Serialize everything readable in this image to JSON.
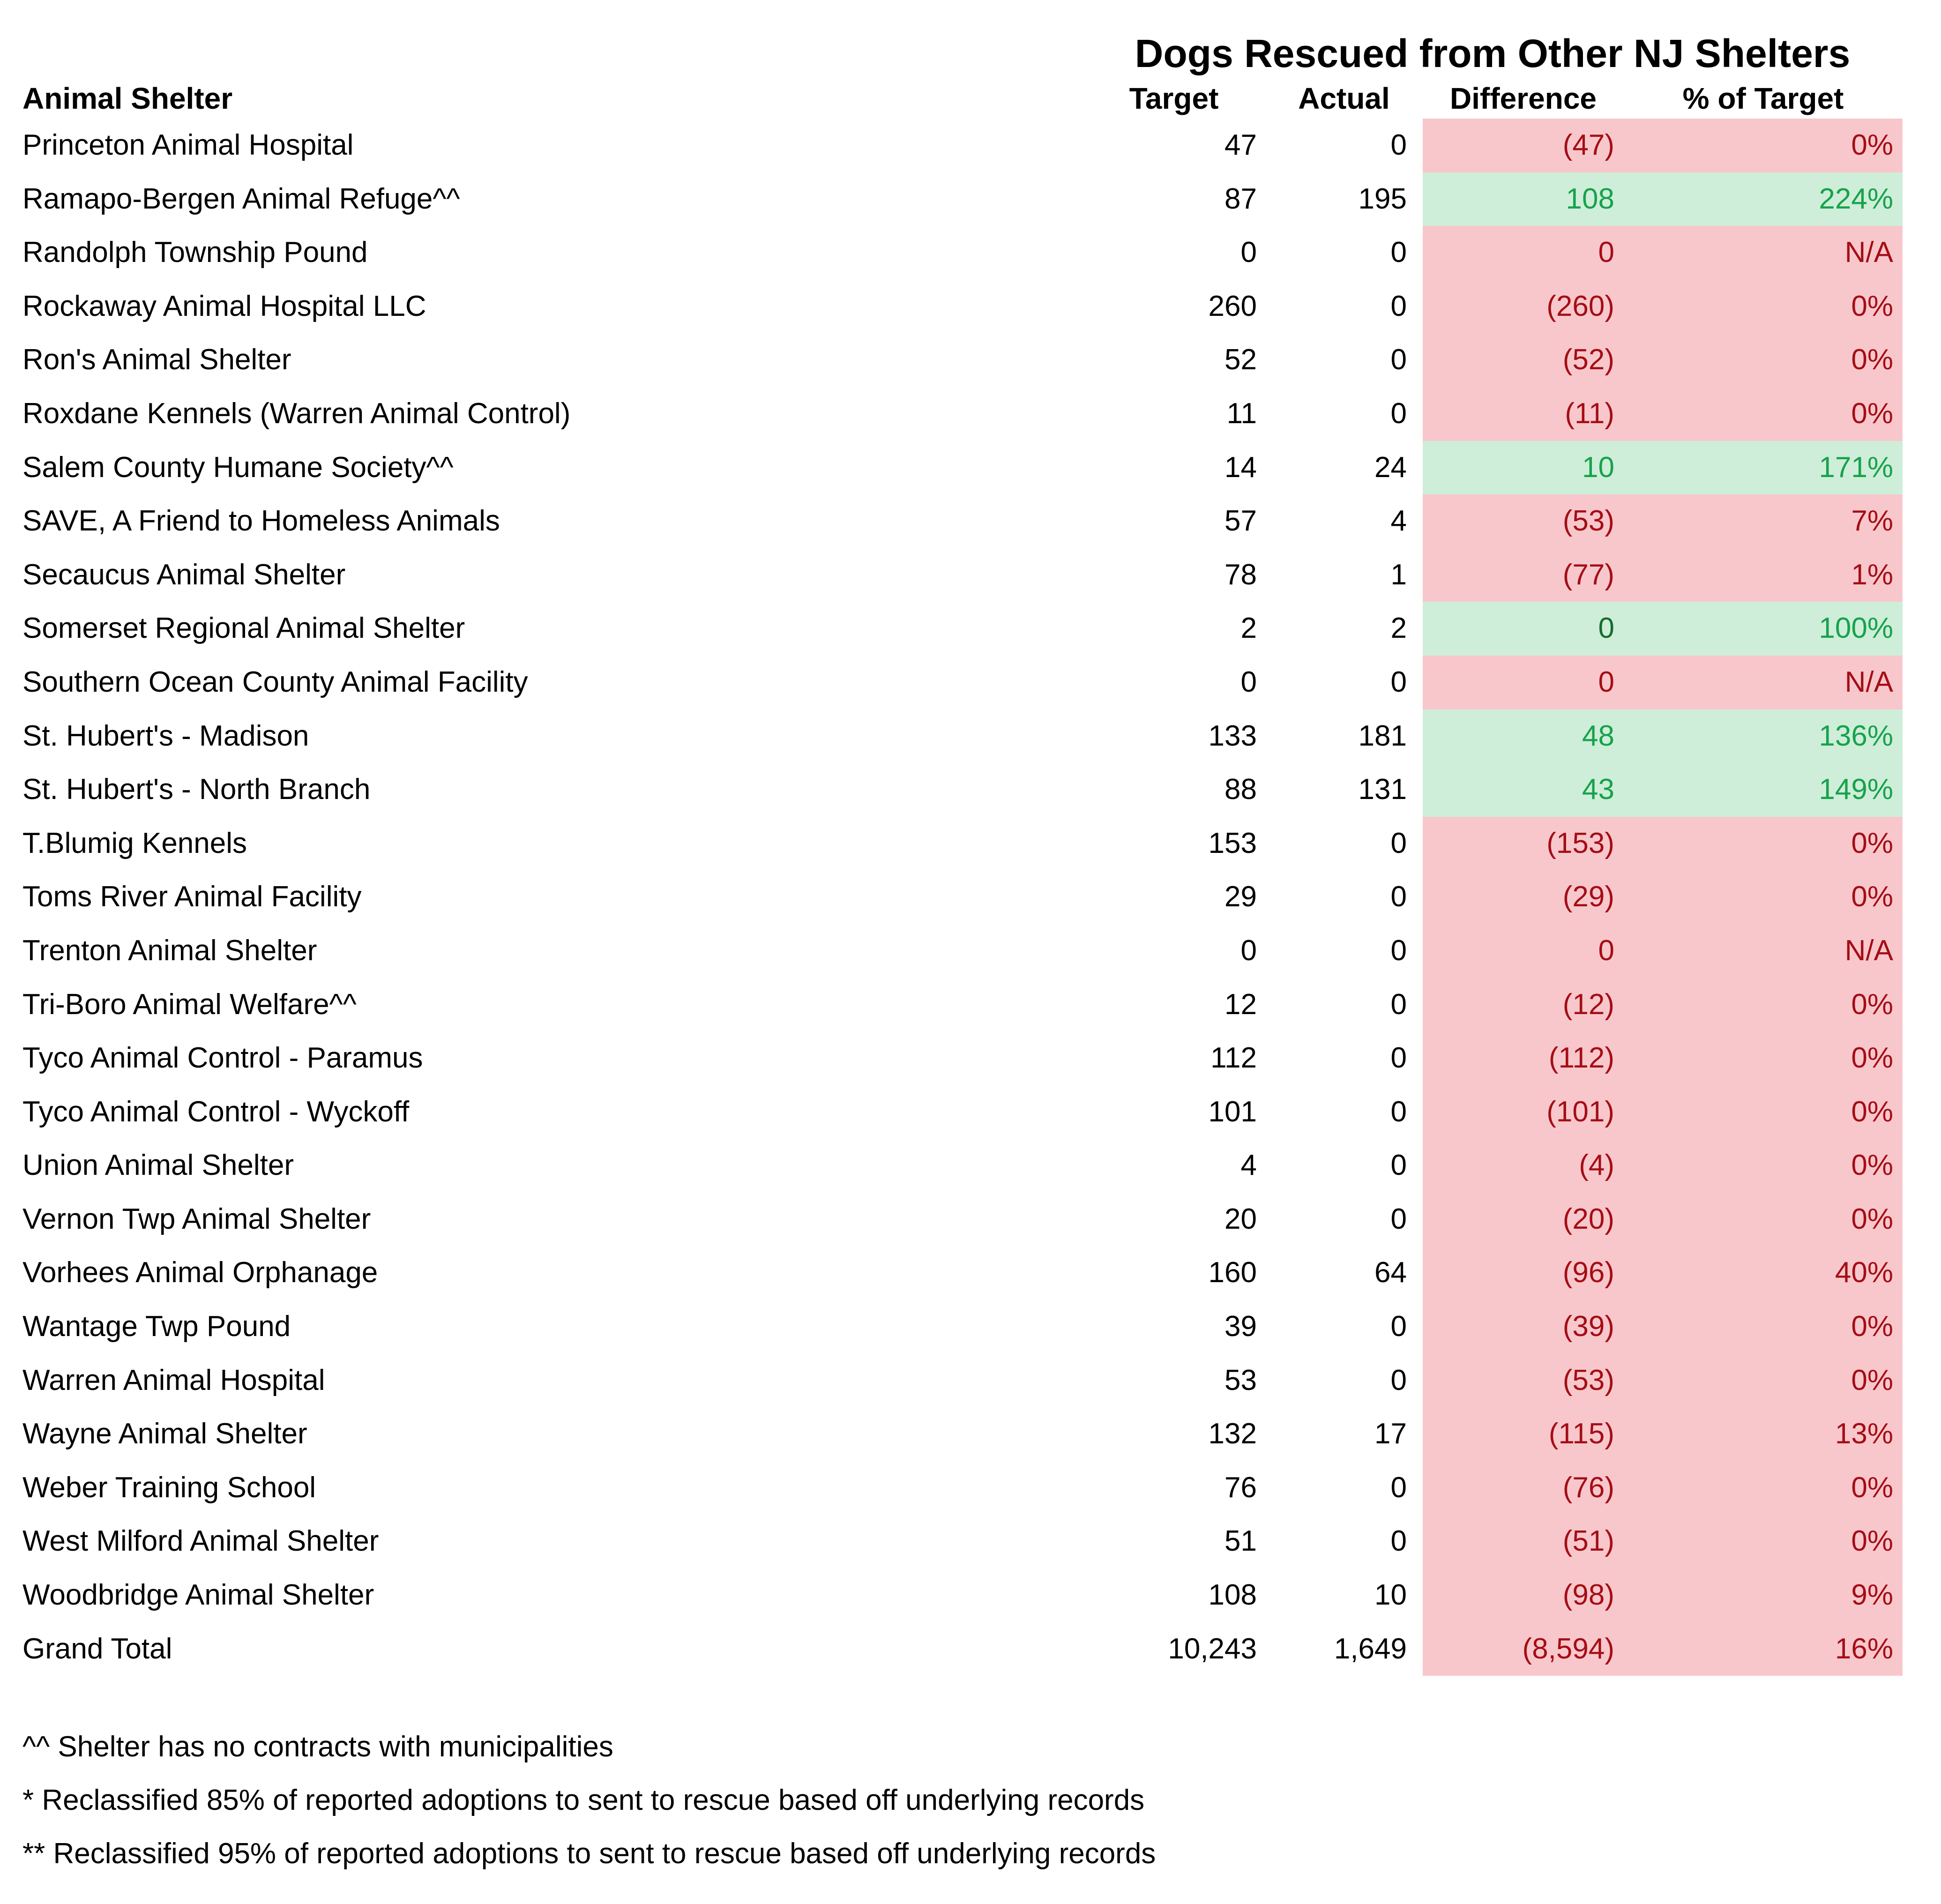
{
  "title": "Dogs Rescued from Other NJ Shelters",
  "columns": {
    "shelter": "Animal Shelter",
    "target": "Target",
    "actual": "Actual",
    "difference": "Difference",
    "pct": "% of Target"
  },
  "rows": [
    {
      "shelter": "Princeton Animal Hospital",
      "target": "47",
      "actual": "0",
      "difference": "(47)",
      "pct": "0%",
      "status": "bad"
    },
    {
      "shelter": "Ramapo-Bergen Animal Refuge^^",
      "target": "87",
      "actual": "195",
      "difference": "108",
      "pct": "224%",
      "status": "good"
    },
    {
      "shelter": "Randolph Township Pound",
      "target": "0",
      "actual": "0",
      "difference": "0",
      "pct": "N/A",
      "status": "bad"
    },
    {
      "shelter": "Rockaway Animal Hospital LLC",
      "target": "260",
      "actual": "0",
      "difference": "(260)",
      "pct": "0%",
      "status": "bad"
    },
    {
      "shelter": "Ron's Animal Shelter",
      "target": "52",
      "actual": "0",
      "difference": "(52)",
      "pct": "0%",
      "status": "bad"
    },
    {
      "shelter": "Roxdane Kennels (Warren Animal Control)",
      "target": "11",
      "actual": "0",
      "difference": "(11)",
      "pct": "0%",
      "status": "bad"
    },
    {
      "shelter": "Salem County Humane Society^^",
      "target": "14",
      "actual": "24",
      "difference": "10",
      "pct": "171%",
      "status": "good"
    },
    {
      "shelter": "SAVE, A Friend to Homeless Animals",
      "target": "57",
      "actual": "4",
      "difference": "(53)",
      "pct": "7%",
      "status": "bad"
    },
    {
      "shelter": "Secaucus Animal Shelter",
      "target": "78",
      "actual": "1",
      "difference": "(77)",
      "pct": "1%",
      "status": "bad"
    },
    {
      "shelter": "Somerset Regional Animal Shelter",
      "target": "2",
      "actual": "2",
      "difference": "0",
      "pct": "100%",
      "status": "good",
      "diff_tone": "dark"
    },
    {
      "shelter": "Southern Ocean County Animal Facility",
      "target": "0",
      "actual": "0",
      "difference": "0",
      "pct": "N/A",
      "status": "bad"
    },
    {
      "shelter": "St. Hubert's - Madison",
      "target": "133",
      "actual": "181",
      "difference": "48",
      "pct": "136%",
      "status": "good"
    },
    {
      "shelter": "St. Hubert's - North Branch",
      "target": "88",
      "actual": "131",
      "difference": "43",
      "pct": "149%",
      "status": "good"
    },
    {
      "shelter": "T.Blumig Kennels",
      "target": "153",
      "actual": "0",
      "difference": "(153)",
      "pct": "0%",
      "status": "bad"
    },
    {
      "shelter": "Toms River Animal Facility",
      "target": "29",
      "actual": "0",
      "difference": "(29)",
      "pct": "0%",
      "status": "bad"
    },
    {
      "shelter": "Trenton Animal Shelter",
      "target": "0",
      "actual": "0",
      "difference": "0",
      "pct": "N/A",
      "status": "bad"
    },
    {
      "shelter": "Tri-Boro Animal Welfare^^",
      "target": "12",
      "actual": "0",
      "difference": "(12)",
      "pct": "0%",
      "status": "bad"
    },
    {
      "shelter": "Tyco Animal Control - Paramus",
      "target": "112",
      "actual": "0",
      "difference": "(112)",
      "pct": "0%",
      "status": "bad"
    },
    {
      "shelter": "Tyco Animal Control - Wyckoff",
      "target": "101",
      "actual": "0",
      "difference": "(101)",
      "pct": "0%",
      "status": "bad"
    },
    {
      "shelter": "Union Animal Shelter",
      "target": "4",
      "actual": "0",
      "difference": "(4)",
      "pct": "0%",
      "status": "bad"
    },
    {
      "shelter": "Vernon Twp Animal Shelter",
      "target": "20",
      "actual": "0",
      "difference": "(20)",
      "pct": "0%",
      "status": "bad"
    },
    {
      "shelter": "Vorhees Animal Orphanage",
      "target": "160",
      "actual": "64",
      "difference": "(96)",
      "pct": "40%",
      "status": "bad"
    },
    {
      "shelter": "Wantage Twp Pound",
      "target": "39",
      "actual": "0",
      "difference": "(39)",
      "pct": "0%",
      "status": "bad"
    },
    {
      "shelter": "Warren Animal Hospital",
      "target": "53",
      "actual": "0",
      "difference": "(53)",
      "pct": "0%",
      "status": "bad"
    },
    {
      "shelter": "Wayne Animal Shelter",
      "target": "132",
      "actual": "17",
      "difference": "(115)",
      "pct": "13%",
      "status": "bad"
    },
    {
      "shelter": "Weber Training School",
      "target": "76",
      "actual": "0",
      "difference": "(76)",
      "pct": "0%",
      "status": "bad"
    },
    {
      "shelter": "West Milford Animal Shelter",
      "target": "51",
      "actual": "0",
      "difference": "(51)",
      "pct": "0%",
      "status": "bad"
    },
    {
      "shelter": "Woodbridge Animal Shelter",
      "target": "108",
      "actual": "10",
      "difference": "(98)",
      "pct": "9%",
      "status": "bad"
    },
    {
      "shelter": "Grand Total",
      "target": "10,243",
      "actual": "1,649",
      "difference": "(8,594)",
      "pct": "16%",
      "status": "bad"
    }
  ],
  "footnotes": [
    "^^ Shelter has no contracts with municipalities",
    "* Reclassified 85% of reported adoptions to sent to rescue based off underlying records",
    "** Reclassified 95% of reported adoptions to sent to rescue based off underlying records"
  ],
  "colors": {
    "negative_bg": "#F8C7CC",
    "negative_text": "#A50D15",
    "positive_bg": "#CEEED9",
    "positive_text": "#17A24B",
    "positive_text_dark": "#156D2C"
  }
}
